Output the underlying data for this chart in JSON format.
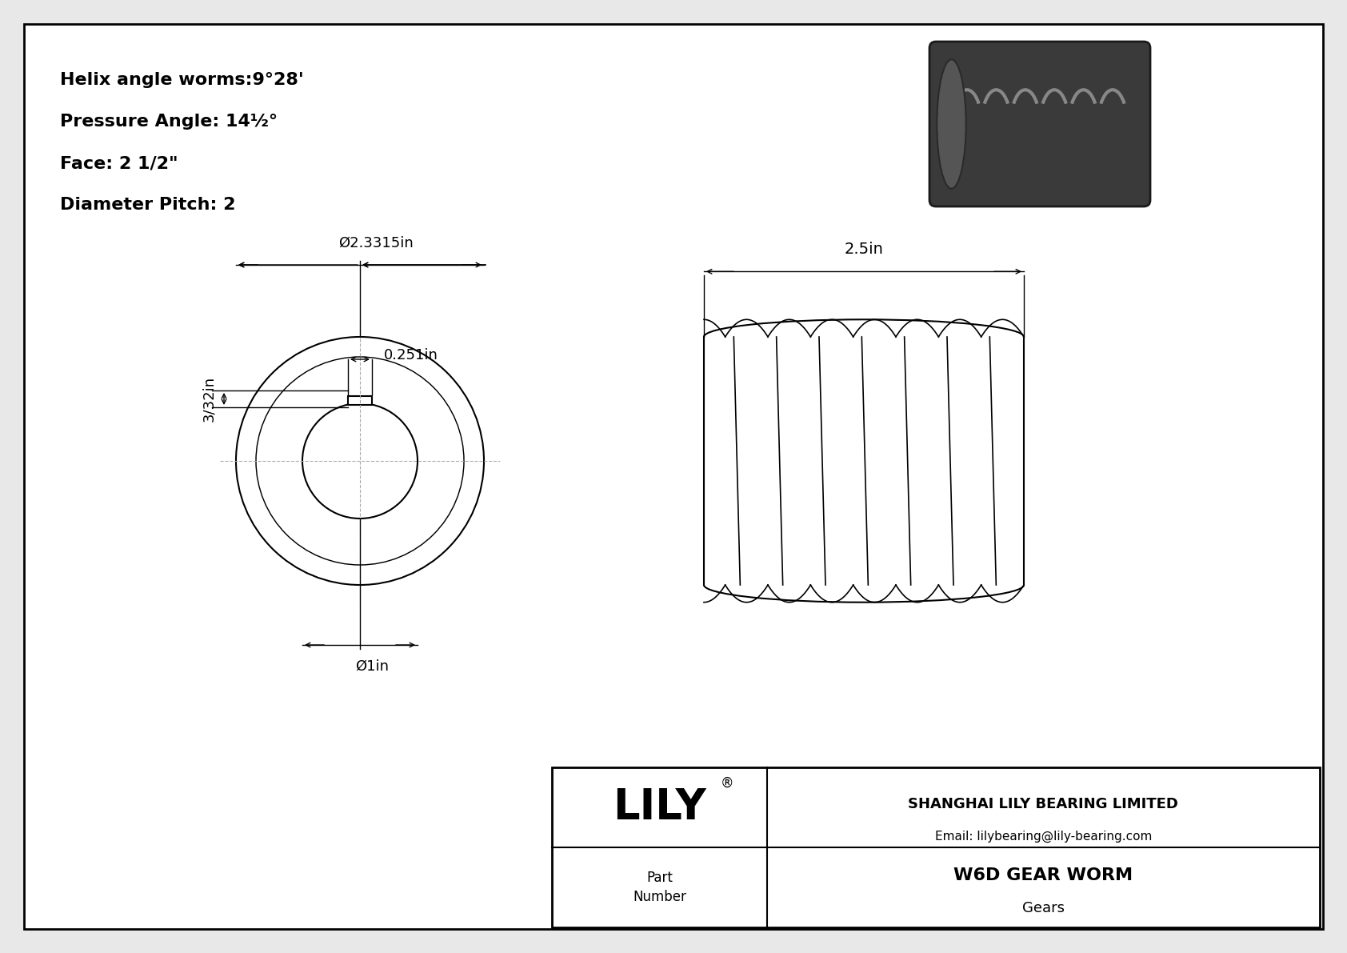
{
  "bg_color": "#e8e8e8",
  "paper_color": "#ffffff",
  "line_color": "#000000",
  "title_lines": [
    "Helix angle worms:9°28'",
    "Pressure Angle: 14½°",
    "Face: 2 1/2\"",
    "Diameter Pitch: 2"
  ],
  "dim_outer": "Ø2.3315in",
  "dim_keyway_width": "0.251in",
  "dim_keyway_depth": "3/32in",
  "dim_bore": "Ø1in",
  "dim_face": "2.5in",
  "company": "SHANGHAI LILY BEARING LIMITED",
  "email": "Email: lilybearing@lily-bearing.com",
  "part_label": "Part\nNumber",
  "part_name": "W6D GEAR WORM",
  "part_cat": "Gears",
  "lily_text": "LILY"
}
